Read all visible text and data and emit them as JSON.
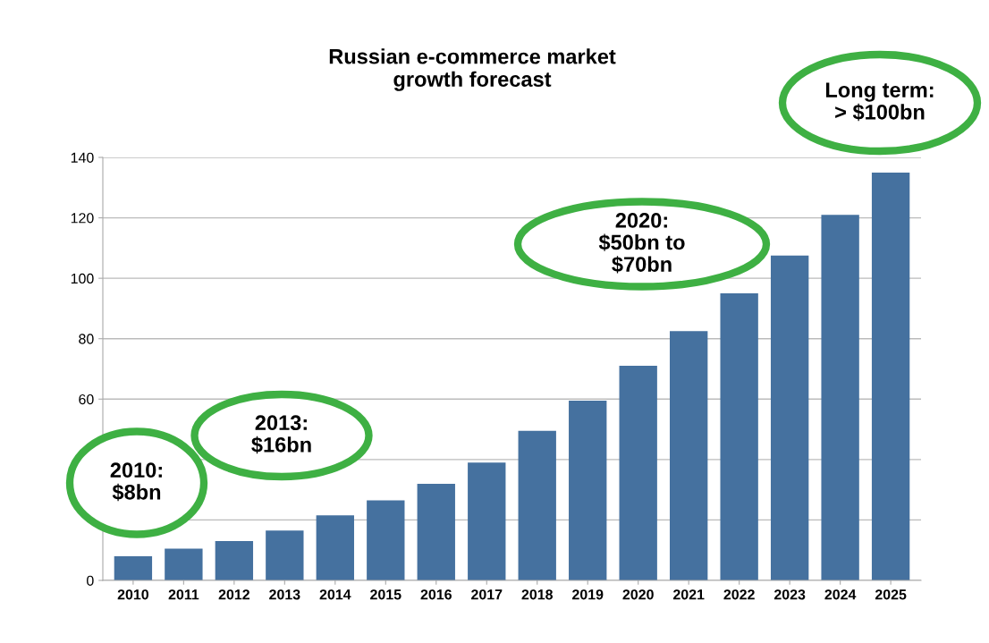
{
  "chart_data": {
    "type": "bar",
    "title": "Russian e-commerce market\ngrowth forecast",
    "categories": [
      "2010",
      "2011",
      "2012",
      "2013",
      "2014",
      "2015",
      "2016",
      "2017",
      "2018",
      "2019",
      "2020",
      "2021",
      "2022",
      "2023",
      "2024",
      "2025"
    ],
    "values": [
      8,
      10.5,
      13,
      16.5,
      21.5,
      26.5,
      32,
      39,
      49.5,
      59.5,
      71,
      82.5,
      95,
      107.5,
      121,
      135
    ],
    "color": "#45719f",
    "ylim": [
      0,
      140
    ],
    "yticks": [
      0,
      {
        "value": 20,
        "label": null
      },
      {
        "value": 40,
        "label": null
      },
      60,
      80,
      100,
      120,
      140
    ],
    "grid": "y",
    "annotations": [
      "2010:\n$8bn",
      "2013:\n$16bn",
      "2020:\n$50bn to\n$70bn",
      "Long term:\n> $100bn"
    ]
  }
}
